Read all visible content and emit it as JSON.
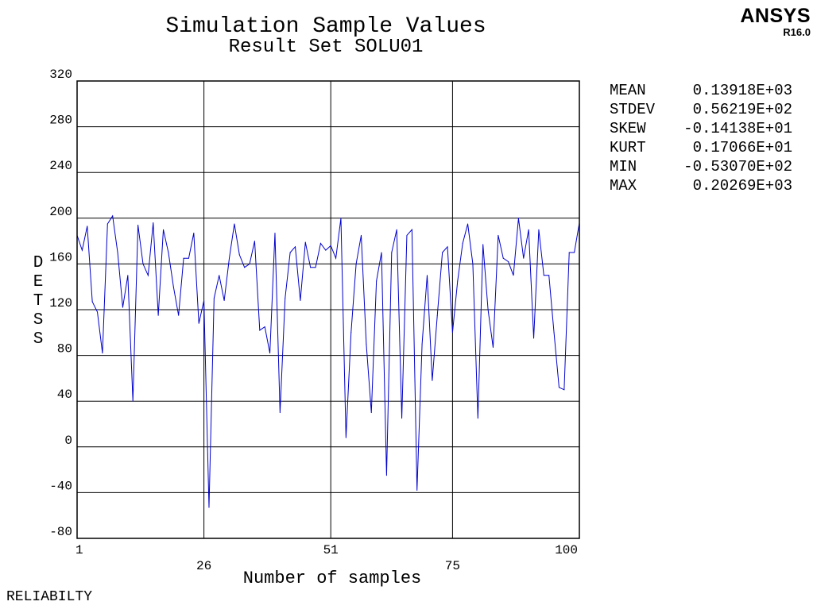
{
  "header": {
    "title": "Simulation Sample Values",
    "subtitle": "Result Set SOLU01"
  },
  "logo": {
    "name": "ANSYS",
    "version": "R16.0"
  },
  "statistics": [
    {
      "name": "MEAN",
      "value": "0.13918E+03"
    },
    {
      "name": "STDEV",
      "value": "0.56219E+02"
    },
    {
      "name": "SKEW",
      "value": "-0.14138E+01"
    },
    {
      "name": "KURT",
      "value": "0.17066E+01"
    },
    {
      "name": "MIN",
      "value": "-0.53070E+02"
    },
    {
      "name": "MAX",
      "value": "0.20269E+03"
    }
  ],
  "footer": {
    "label": "RELIABILTY"
  },
  "colors": {
    "series": "#0000cc",
    "grid": "#000000"
  },
  "chart_data": {
    "type": "line",
    "xlabel": "Number of samples",
    "ylabel": "DETSS",
    "xlim": [
      1,
      100
    ],
    "ylim": [
      -80,
      320
    ],
    "y_ticks": [
      -80,
      -40,
      0,
      40,
      80,
      120,
      160,
      200,
      240,
      280,
      320
    ],
    "x_ticks": [
      1,
      26,
      51,
      75,
      100
    ],
    "grid": true,
    "series": [
      {
        "values": [
          185,
          172,
          193,
          127,
          118,
          82,
          195,
          202,
          170,
          122,
          150,
          40,
          194,
          160,
          150,
          196,
          115,
          190,
          170,
          140,
          115,
          165,
          165,
          187,
          108,
          128,
          -53,
          130,
          150,
          128,
          165,
          195,
          168,
          157,
          160,
          180,
          102,
          105,
          82,
          187,
          30,
          130,
          170,
          175,
          128,
          179,
          157,
          157,
          178,
          172,
          176,
          165,
          200,
          8,
          100,
          160,
          185,
          90,
          30,
          145,
          170,
          -25,
          170,
          190,
          25,
          185,
          190,
          -38,
          90,
          150,
          58,
          115,
          170,
          175,
          100,
          145,
          178,
          195,
          160,
          25,
          177,
          120,
          87,
          185,
          165,
          162,
          150,
          200,
          165,
          190,
          95,
          190,
          150,
          150,
          100,
          52,
          50,
          170,
          170,
          196
        ]
      }
    ]
  }
}
